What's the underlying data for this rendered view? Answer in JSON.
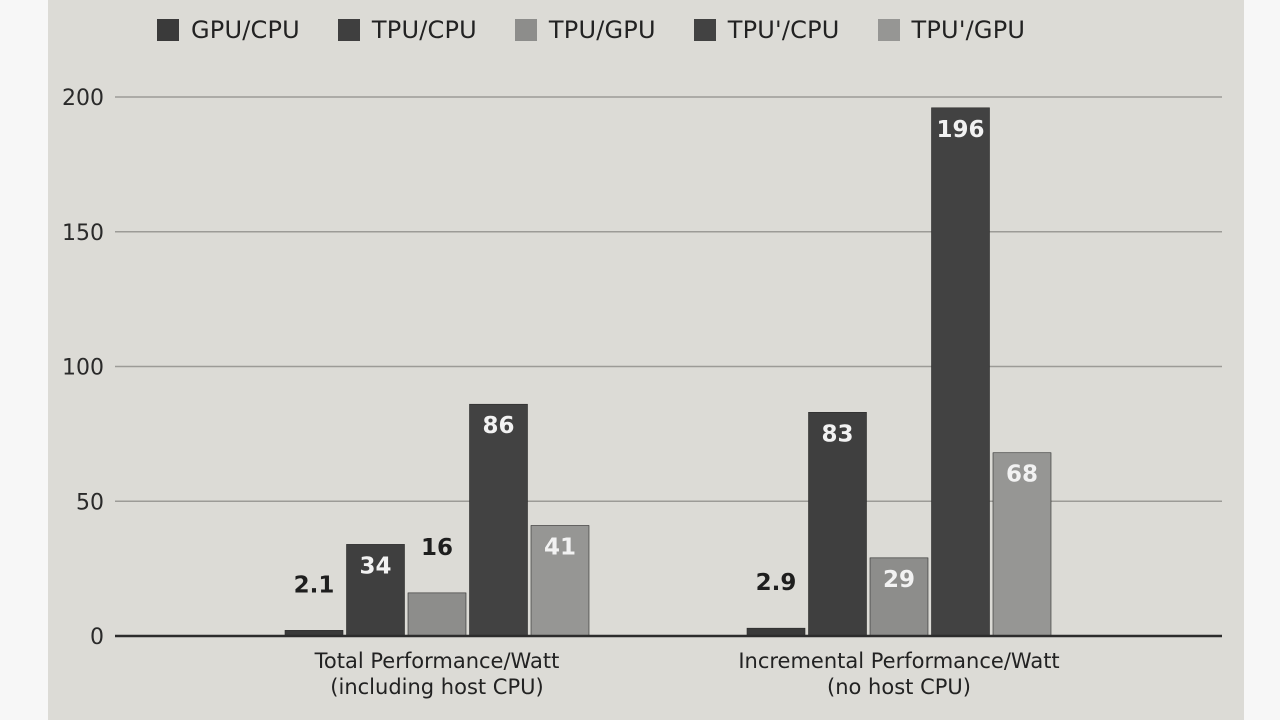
{
  "chart_data": {
    "type": "bar",
    "categories": [
      [
        "Total Performance/Watt",
        "(including host CPU)"
      ],
      [
        "Incremental Performance/Watt",
        "(no host CPU)"
      ]
    ],
    "series": [
      {
        "name": "GPU/CPU",
        "color": "#3a3a3a",
        "values": [
          2.1,
          2.9
        ],
        "labels": [
          "2.1",
          "2.9"
        ]
      },
      {
        "name": "TPU/CPU",
        "color": "#3f3f3f",
        "values": [
          34,
          83
        ],
        "labels": [
          "34",
          "83"
        ]
      },
      {
        "name": "TPU/GPU",
        "color": "#8d8d8b",
        "values": [
          16,
          29
        ],
        "labels": [
          "16",
          "29"
        ]
      },
      {
        "name": "TPU'/CPU",
        "color": "#424242",
        "values": [
          86,
          196
        ],
        "labels": [
          "86",
          "196"
        ]
      },
      {
        "name": "TPU'/GPU",
        "color": "#969694",
        "values": [
          41,
          68
        ],
        "labels": [
          "41",
          "68"
        ]
      }
    ],
    "yticks": [
      0,
      50,
      100,
      150,
      200
    ],
    "ylim": [
      0,
      200
    ],
    "grid": true,
    "legend_position": "top"
  }
}
